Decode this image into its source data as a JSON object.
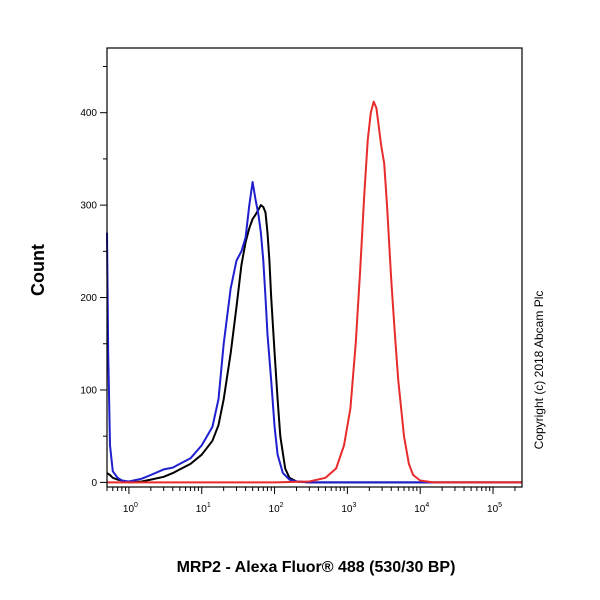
{
  "chart_data": {
    "type": "line",
    "title": "",
    "xlabel": "MRP2 - Alexa Fluor® 488 (530/30 BP)",
    "ylabel": "Count",
    "x_scale": "log",
    "xlim": [
      0.5,
      250000
    ],
    "ylim": [
      -5,
      470
    ],
    "x_ticks": [
      {
        "value": 1,
        "base": "10",
        "exp": "0"
      },
      {
        "value": 10,
        "base": "10",
        "exp": "1"
      },
      {
        "value": 100,
        "base": "10",
        "exp": "2"
      },
      {
        "value": 1000,
        "base": "10",
        "exp": "3"
      },
      {
        "value": 10000,
        "base": "10",
        "exp": "4"
      },
      {
        "value": 100000,
        "base": "10",
        "exp": "5"
      }
    ],
    "y_ticks": [
      {
        "value": 0,
        "label": "0"
      },
      {
        "value": 100,
        "label": "100"
      },
      {
        "value": 200,
        "label": "200"
      },
      {
        "value": 300,
        "label": "300"
      },
      {
        "value": 400,
        "label": "400"
      }
    ],
    "grid": false,
    "legend": "none",
    "annotation": "Copyright (c) 2018 Abcam Plc",
    "series": [
      {
        "color": "#000000",
        "x": [
          0.5,
          0.55,
          0.6,
          0.7,
          0.8,
          1.0,
          1.5,
          2,
          3,
          4,
          5,
          7,
          10,
          14,
          17,
          20,
          25,
          30,
          35,
          40,
          45,
          50,
          55,
          60,
          65,
          70,
          75,
          80,
          85,
          90,
          100,
          110,
          120,
          140,
          160,
          200,
          300,
          1000,
          10000,
          100000,
          250000
        ],
        "y": [
          10,
          8,
          5,
          3,
          2,
          0,
          1,
          3,
          6,
          10,
          14,
          20,
          30,
          45,
          62,
          90,
          140,
          190,
          235,
          260,
          275,
          285,
          290,
          295,
          300,
          298,
          292,
          270,
          240,
          200,
          140,
          90,
          50,
          15,
          5,
          1,
          0,
          0,
          0,
          0,
          0
        ]
      },
      {
        "color": "#1f1fcf",
        "x": [
          0.5,
          0.52,
          0.55,
          0.6,
          0.7,
          0.8,
          1.0,
          1.5,
          2,
          3,
          4,
          5,
          7,
          10,
          14,
          17,
          20,
          25,
          30,
          35,
          40,
          45,
          50,
          55,
          60,
          65,
          70,
          75,
          80,
          90,
          100,
          110,
          130,
          160,
          200,
          300,
          1000,
          10000,
          100000,
          250000
        ],
        "y": [
          270,
          140,
          40,
          12,
          5,
          2,
          1,
          4,
          8,
          14,
          16,
          20,
          26,
          40,
          60,
          90,
          150,
          210,
          240,
          250,
          265,
          300,
          325,
          305,
          290,
          270,
          240,
          200,
          160,
          110,
          60,
          30,
          10,
          3,
          1,
          0,
          0,
          0,
          0,
          0
        ]
      },
      {
        "color": "#e82b2b",
        "x": [
          0.5,
          100,
          300,
          500,
          700,
          900,
          1100,
          1300,
          1500,
          1700,
          1900,
          2100,
          2300,
          2500,
          2700,
          2900,
          3200,
          3500,
          4000,
          4500,
          5000,
          6000,
          7000,
          8000,
          10000,
          15000,
          30000,
          100000,
          250000
        ],
        "y": [
          0,
          0,
          1,
          5,
          15,
          40,
          80,
          150,
          230,
          310,
          370,
          400,
          412,
          405,
          385,
          365,
          345,
          300,
          220,
          160,
          110,
          50,
          20,
          8,
          2,
          0,
          0,
          0,
          0
        ]
      }
    ]
  }
}
